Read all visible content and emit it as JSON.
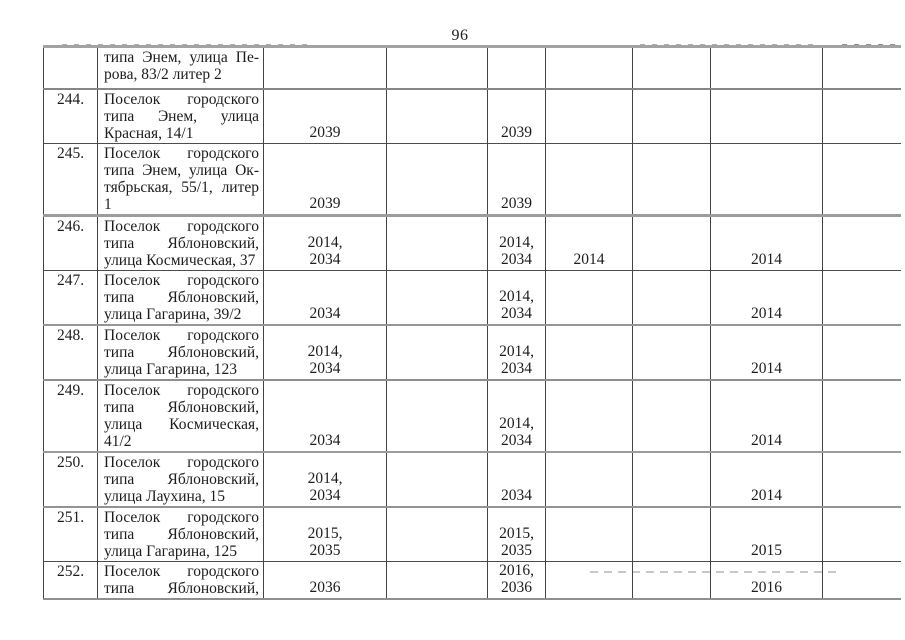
{
  "page": {
    "number": "96"
  },
  "table": {
    "rows": [
      {
        "num": "",
        "address_lines": [
          "типа Энем, улица Пе-",
          "рова, 83/2 литер 2"
        ],
        "cols": [
          "",
          "",
          "",
          "",
          "",
          "",
          ""
        ]
      },
      {
        "num": "244.",
        "address_lines": [
          "Поселок городского",
          "типа Энем, улица",
          "Красная, 14/1"
        ],
        "cols": [
          "2039",
          "",
          "2039",
          "",
          "",
          "",
          ""
        ]
      },
      {
        "num": "245.",
        "address_lines": [
          "Поселок городского",
          "типа Энем, улица Ок-",
          "тябрьская, 55/1, литер",
          "1"
        ],
        "cols": [
          "2039",
          "",
          "2039",
          "",
          "",
          "",
          ""
        ]
      },
      {
        "num": "246.",
        "address_lines": [
          "Поселок городского",
          "типа Яблоновский,",
          "улица Космическая, 37"
        ],
        "cols": [
          "2014,\n2034",
          "",
          "2014,\n2034",
          "2014",
          "",
          "2014",
          ""
        ]
      },
      {
        "num": "247.",
        "address_lines": [
          "Поселок городского",
          "типа Яблоновский,",
          "улица Гагарина, 39/2"
        ],
        "cols": [
          "2034",
          "",
          "2014,\n2034",
          "",
          "",
          "2014",
          ""
        ]
      },
      {
        "num": "248.",
        "address_lines": [
          "Поселок городского",
          "типа Яблоновский,",
          "улица Гагарина, 123"
        ],
        "cols": [
          "2014,\n2034",
          "",
          "2014,\n2034",
          "",
          "",
          "2014",
          ""
        ]
      },
      {
        "num": "249.",
        "address_lines": [
          "Поселок городского",
          "типа Яблоновский,",
          "улица Космическая,",
          "41/2"
        ],
        "cols": [
          "2034",
          "",
          "2014,\n2034",
          "",
          "",
          "2014",
          ""
        ]
      },
      {
        "num": "250.",
        "address_lines": [
          "Поселок городского",
          "типа Яблоновский,",
          "улица Лаухина, 15"
        ],
        "cols": [
          "2014,\n2034",
          "",
          "2034",
          "",
          "",
          "2014",
          ""
        ]
      },
      {
        "num": "251.",
        "address_lines": [
          "Поселок городского",
          "типа Яблоновский,",
          "улица Гагарина, 125"
        ],
        "cols": [
          "2015,\n2035",
          "",
          "2015,\n2035",
          "",
          "",
          "2015",
          ""
        ]
      },
      {
        "num": "252.",
        "address_lines": [
          "Поселок городского",
          "типа Яблоновский,"
        ],
        "cols": [
          "2036",
          "",
          "2016,\n2036",
          "",
          "",
          "2016",
          ""
        ],
        "justify_last_line": true
      }
    ]
  }
}
